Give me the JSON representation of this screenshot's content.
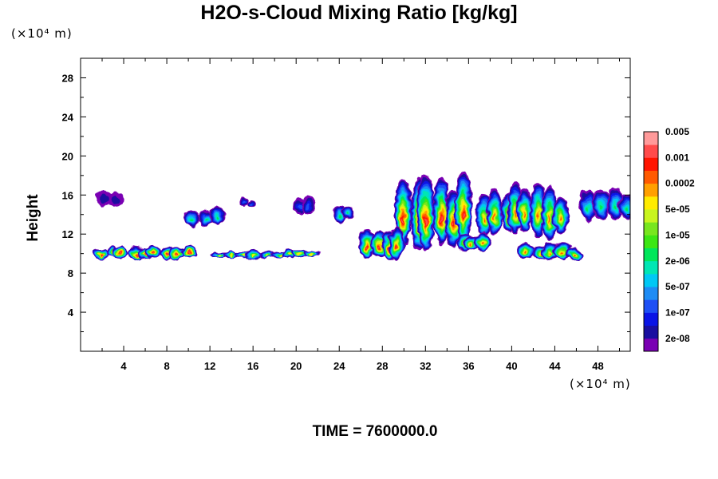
{
  "chart_data": {
    "type": "heatmap",
    "title": "H2O-s-Cloud Mixing Ratio [kg/kg]",
    "xlabel": "",
    "ylabel": "Height",
    "x_unit": "(×10⁴ m)",
    "y_unit": "(×10⁴ m)",
    "footer": "TIME = 7600000.0",
    "xlim": [
      0,
      51
    ],
    "ylim": [
      0,
      30
    ],
    "x_ticks": [
      "4",
      "8",
      "12",
      "16",
      "20",
      "24",
      "28",
      "32",
      "36",
      "40",
      "44",
      "48"
    ],
    "y_ticks": [
      "4",
      "8",
      "12",
      "16",
      "20",
      "24",
      "28"
    ],
    "colorbar": {
      "colors": [
        "#7a00b3",
        "#1a0fa0",
        "#0a14e6",
        "#1e50f5",
        "#1e8cf5",
        "#00c8f5",
        "#00e6b4",
        "#00e65a",
        "#3ce614",
        "#78e61e",
        "#c8f51e",
        "#ffeb00",
        "#ffa000",
        "#ff5a00",
        "#ff1400",
        "#ff4b4b",
        "#ff9a9a"
      ],
      "labels": [
        "2e-08",
        "1e-07",
        "5e-07",
        "2e-06",
        "1e-05",
        "5e-05",
        "0.0002",
        "0.001",
        "0.005"
      ]
    },
    "regions": [
      {
        "x": [
          1.5,
          3.5
        ],
        "y": [
          15,
          16.3
        ],
        "peak": "2e-08"
      },
      {
        "x": [
          10,
          13
        ],
        "y": [
          13,
          14.5
        ],
        "peak": "2e-06"
      },
      {
        "x": [
          15,
          16
        ],
        "y": [
          14.8,
          15.5
        ],
        "peak": "1e-07"
      },
      {
        "x": [
          20,
          21.7
        ],
        "y": [
          14.2,
          15.6
        ],
        "peak": "1e-07"
      },
      {
        "x": [
          23.5,
          25
        ],
        "y": [
          13.2,
          14.8
        ],
        "peak": "2e-06"
      },
      {
        "x": [
          29.5,
          36
        ],
        "y": [
          11,
          17
        ],
        "peak": "0.001"
      },
      {
        "x": [
          37,
          45
        ],
        "y": [
          12,
          16.3
        ],
        "peak": "0.0002"
      },
      {
        "x": [
          46.5,
          51
        ],
        "y": [
          13.5,
          16.3
        ],
        "peak": "2e-06"
      },
      {
        "x": [
          26,
          30
        ],
        "y": [
          9.8,
          12.5
        ],
        "peak": "0.001"
      },
      {
        "x": [
          35,
          38
        ],
        "y": [
          10.5,
          12
        ],
        "peak": "0.0002"
      },
      {
        "x": [
          1.5,
          10.5
        ],
        "y": [
          9.6,
          10.6
        ],
        "peak": "0.001"
      },
      {
        "x": [
          12.5,
          22
        ],
        "y": [
          9.6,
          10.2
        ],
        "peak": "5e-05"
      },
      {
        "x": [
          41,
          46.5
        ],
        "y": [
          9.5,
          10.8
        ],
        "peak": "0.0002"
      }
    ]
  }
}
